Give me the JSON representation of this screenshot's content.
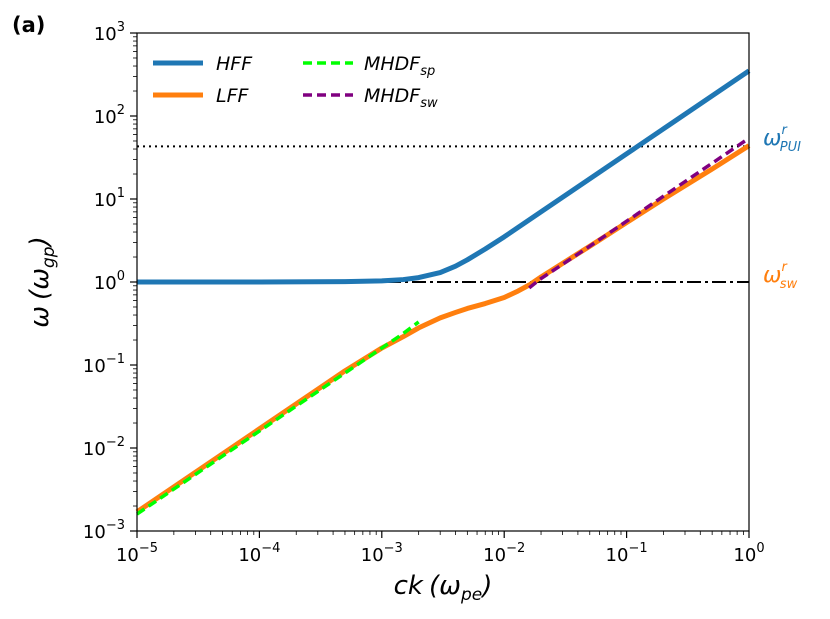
{
  "panel_label": "(a)",
  "colors": {
    "hff": "#1f77b4",
    "lff": "#ff7f0e",
    "mhdf_sp": "#00ff00",
    "mhdf_sw": "#800080",
    "pui_label": "#1f77b4",
    "sw_label": "#ff7f0e"
  },
  "axes": {
    "xlabel_main": "ck",
    "xlabel_paren_open": "(",
    "xlabel_omega": "ω",
    "xlabel_sub": "pe",
    "xlabel_paren_close": ")",
    "ylabel_omega": "ω",
    "ylabel_paren_open": "(",
    "ylabel_omega2": "ω",
    "ylabel_sub": "gp",
    "ylabel_paren_close": ")",
    "x_ticks": [
      {
        "base": "10",
        "exp": "−5"
      },
      {
        "base": "10",
        "exp": "−4"
      },
      {
        "base": "10",
        "exp": "−3"
      },
      {
        "base": "10",
        "exp": "−2"
      },
      {
        "base": "10",
        "exp": "−1"
      },
      {
        "base": "10",
        "exp": "0"
      }
    ],
    "y_ticks": [
      {
        "base": "10",
        "exp": "−3"
      },
      {
        "base": "10",
        "exp": "−2"
      },
      {
        "base": "10",
        "exp": "−1"
      },
      {
        "base": "10",
        "exp": "0"
      },
      {
        "base": "10",
        "exp": "1"
      },
      {
        "base": "10",
        "exp": "2"
      },
      {
        "base": "10",
        "exp": "3"
      }
    ]
  },
  "legend": {
    "hff": "HFF",
    "lff": "LFF",
    "mhdf_sp_main": "MHDF",
    "mhdf_sp_sub": "sp",
    "mhdf_sw_main": "MHDF",
    "mhdf_sw_sub": "sw"
  },
  "ref_labels": {
    "pui_main": "ω",
    "pui_sup": "r",
    "pui_sub": "PUI",
    "sw_main": "ω",
    "sw_sup": "r",
    "sw_sub": "sw"
  },
  "chart_data": {
    "type": "line",
    "x_scale": "log",
    "y_scale": "log",
    "xlim": [
      1e-05,
      1
    ],
    "ylim": [
      0.001,
      1000
    ],
    "grid": false,
    "legend_position": "top-left",
    "series": [
      {
        "name": "HFF",
        "style": "solid",
        "points": [
          [
            1e-05,
            1.0
          ],
          [
            0.0001,
            1.0
          ],
          [
            0.0005,
            1.01
          ],
          [
            0.001,
            1.03
          ],
          [
            0.0015,
            1.07
          ],
          [
            0.002,
            1.13
          ],
          [
            0.003,
            1.3
          ],
          [
            0.004,
            1.55
          ],
          [
            0.005,
            1.85
          ],
          [
            0.007,
            2.5
          ],
          [
            0.01,
            3.5
          ],
          [
            0.02,
            7.0
          ],
          [
            0.05,
            17.5
          ],
          [
            0.1,
            35
          ],
          [
            0.2,
            70
          ],
          [
            0.5,
            175
          ],
          [
            1.0,
            350
          ]
        ]
      },
      {
        "name": "LFF",
        "style": "solid",
        "points": [
          [
            1e-05,
            0.0017
          ],
          [
            0.0001,
            0.017
          ],
          [
            0.0005,
            0.085
          ],
          [
            0.001,
            0.16
          ],
          [
            0.0015,
            0.22
          ],
          [
            0.002,
            0.28
          ],
          [
            0.003,
            0.37
          ],
          [
            0.004,
            0.43
          ],
          [
            0.005,
            0.48
          ],
          [
            0.007,
            0.55
          ],
          [
            0.01,
            0.65
          ],
          [
            0.013,
            0.78
          ],
          [
            0.016,
            0.92
          ],
          [
            0.02,
            1.15
          ],
          [
            0.05,
            2.7
          ],
          [
            0.1,
            5.2
          ],
          [
            0.2,
            10
          ],
          [
            0.5,
            23
          ],
          [
            1.0,
            44
          ]
        ]
      },
      {
        "name": "MHDF_sp",
        "style": "dashed",
        "points": [
          [
            1e-05,
            0.0016
          ],
          [
            0.0001,
            0.016
          ],
          [
            0.0005,
            0.08
          ],
          [
            0.001,
            0.16
          ],
          [
            0.0015,
            0.24
          ],
          [
            0.002,
            0.33
          ]
        ]
      },
      {
        "name": "MHDF_sw",
        "style": "dashed",
        "points": [
          [
            0.016,
            0.85
          ],
          [
            0.02,
            1.1
          ],
          [
            0.05,
            2.7
          ],
          [
            0.1,
            5.4
          ],
          [
            0.2,
            10.8
          ],
          [
            0.5,
            27
          ],
          [
            1.0,
            54
          ]
        ]
      }
    ],
    "reference_lines": [
      {
        "label": "ω_PUI^r",
        "y": 43,
        "style": "dotted",
        "color": "#000000"
      },
      {
        "label": "ω_sw^r",
        "y": 1.0,
        "style": "dashdot",
        "color": "#000000"
      }
    ]
  }
}
